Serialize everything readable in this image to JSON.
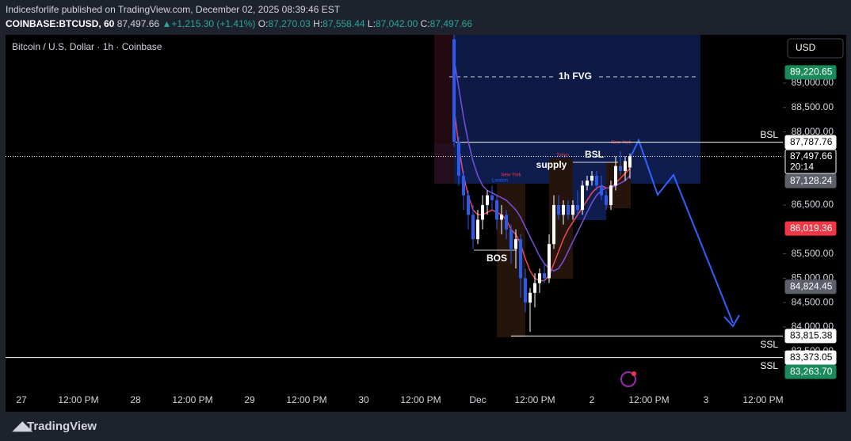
{
  "header": {
    "line1": "Indicesforlife published on TradingView.com, December 02, 2025 08:39:46 EST",
    "symbol": "COINBASE:BTCUSD, 60",
    "last": "87,497.66",
    "change": "+1,215.30 (+1.41%)",
    "o_label": "O:",
    "o": "87,270.03",
    "h_label": "H:",
    "h": "87,558.44",
    "l_label": "L:",
    "l": "87,042.00",
    "c_label": "C:",
    "c": "87,497.66"
  },
  "currency": "USD",
  "footer_logo": "TradingView",
  "chart_data": {
    "type": "candlestick",
    "title": "Bitcoin / U.S. Dollar · 1h · Coinbase",
    "up_color": "#ffffff",
    "down_color": "#2a5bf0",
    "ylim": [
      82750,
      89990
    ],
    "yticks": [
      {
        "value": 89000,
        "label": "89,000.00"
      },
      {
        "value": 88500,
        "label": "88,500.00"
      },
      {
        "value": 88000,
        "label": "88,000.00"
      },
      {
        "value": 86500,
        "label": "86,500.00"
      },
      {
        "value": 85500,
        "label": "85,500.00"
      },
      {
        "value": 85000,
        "label": "85,000.00"
      },
      {
        "value": 84500,
        "label": "84,500.00"
      },
      {
        "value": 84000,
        "label": "84,000.00"
      },
      {
        "value": 83500,
        "label": "83,500.00"
      }
    ],
    "xticks": [
      "27",
      "12:00 PM",
      "28",
      "12:00 PM",
      "29",
      "12:00 PM",
      "30",
      "12:00 PM",
      "Dec",
      "12:00 PM",
      "2",
      "12:00 PM",
      "3",
      "12:00 PM"
    ],
    "candles": [
      {
        "o": 89900,
        "h": 89990,
        "l": 87700,
        "c": 87800
      },
      {
        "o": 87800,
        "h": 87900,
        "l": 86900,
        "c": 87100
      },
      {
        "o": 87100,
        "h": 87200,
        "l": 86400,
        "c": 86700
      },
      {
        "o": 86700,
        "h": 86800,
        "l": 86000,
        "c": 86300
      },
      {
        "o": 86300,
        "h": 86500,
        "l": 85600,
        "c": 85800
      },
      {
        "o": 85800,
        "h": 86400,
        "l": 85700,
        "c": 86200
      },
      {
        "o": 86200,
        "h": 86700,
        "l": 86000,
        "c": 86500
      },
      {
        "o": 86500,
        "h": 86800,
        "l": 86300,
        "c": 86700
      },
      {
        "o": 86700,
        "h": 86900,
        "l": 86400,
        "c": 86600
      },
      {
        "o": 86600,
        "h": 86700,
        "l": 86000,
        "c": 86200
      },
      {
        "o": 86200,
        "h": 86500,
        "l": 85900,
        "c": 86300
      },
      {
        "o": 86300,
        "h": 86400,
        "l": 85800,
        "c": 86000
      },
      {
        "o": 86000,
        "h": 86100,
        "l": 85300,
        "c": 85600
      },
      {
        "o": 85600,
        "h": 86000,
        "l": 85200,
        "c": 85800
      },
      {
        "o": 85800,
        "h": 85900,
        "l": 84600,
        "c": 85000
      },
      {
        "o": 85000,
        "h": 85200,
        "l": 84300,
        "c": 84500
      },
      {
        "o": 84500,
        "h": 84800,
        "l": 83900,
        "c": 84700
      },
      {
        "o": 84700,
        "h": 85100,
        "l": 84400,
        "c": 84900
      },
      {
        "o": 84900,
        "h": 85200,
        "l": 84700,
        "c": 85100
      },
      {
        "o": 85100,
        "h": 85300,
        "l": 84900,
        "c": 85000
      },
      {
        "o": 85000,
        "h": 85900,
        "l": 84900,
        "c": 85700
      },
      {
        "o": 85700,
        "h": 86700,
        "l": 85600,
        "c": 86500
      },
      {
        "o": 86500,
        "h": 86700,
        "l": 86200,
        "c": 86300
      },
      {
        "o": 86300,
        "h": 86600,
        "l": 86100,
        "c": 86500
      },
      {
        "o": 86500,
        "h": 86600,
        "l": 86200,
        "c": 86300
      },
      {
        "o": 86300,
        "h": 86600,
        "l": 86200,
        "c": 86500
      },
      {
        "o": 86500,
        "h": 86800,
        "l": 86300,
        "c": 86400
      },
      {
        "o": 86400,
        "h": 87000,
        "l": 86300,
        "c": 86900
      },
      {
        "o": 86900,
        "h": 87100,
        "l": 86800,
        "c": 87000
      },
      {
        "o": 87000,
        "h": 87200,
        "l": 86900,
        "c": 87100
      },
      {
        "o": 87100,
        "h": 87200,
        "l": 86800,
        "c": 86900
      },
      {
        "o": 86900,
        "h": 87100,
        "l": 86600,
        "c": 86700
      },
      {
        "o": 86700,
        "h": 86800,
        "l": 86400,
        "c": 86500
      },
      {
        "o": 86500,
        "h": 87000,
        "l": 86400,
        "c": 86900
      },
      {
        "o": 86900,
        "h": 87500,
        "l": 86800,
        "c": 87300
      },
      {
        "o": 87300,
        "h": 87600,
        "l": 87100,
        "c": 87200
      },
      {
        "o": 87200,
        "h": 87500,
        "l": 87000,
        "c": 87400
      },
      {
        "o": 87270,
        "h": 87558,
        "l": 87042,
        "c": 87498
      }
    ],
    "series": [
      {
        "color": "#f0455a",
        "values": [
          88500,
          87700,
          87100,
          86700,
          86400,
          86300,
          86300,
          86350,
          86400,
          86350,
          86300,
          86200,
          86000,
          85900,
          85700,
          85400,
          85150,
          85000,
          84950,
          84950,
          85050,
          85300,
          85550,
          85800,
          86000,
          86150,
          86300,
          86450,
          86600,
          86750,
          86850,
          86900,
          86850,
          86850,
          86950,
          87050,
          87150,
          87250
        ]
      },
      {
        "color": "#7a4fe0",
        "values": [
          89500,
          88900,
          88300,
          87800,
          87400,
          87100,
          86900,
          86800,
          86750,
          86700,
          86650,
          86600,
          86500,
          86400,
          86250,
          86050,
          85850,
          85650,
          85450,
          85300,
          85200,
          85150,
          85200,
          85350,
          85550,
          85750,
          85950,
          86150,
          86350,
          86550,
          86700,
          86800,
          86850,
          86850,
          86900,
          86950,
          87000,
          87100
        ]
      }
    ],
    "price_labels": [
      {
        "value": 89220.65,
        "label": "89,220.65",
        "color": "#1b8a5a",
        "text_color": "#ffffff"
      },
      {
        "value": 87787.76,
        "label": "87,787.76",
        "color": "#ffffff",
        "text_color": "#000000"
      },
      {
        "value": 87497.66,
        "label": "87,497.66",
        "color": "#000000",
        "text_color": "#ffffff",
        "countdown": "20:14"
      },
      {
        "value": 87128.24,
        "label": "87,128.24",
        "color": "#5d606b",
        "text_color": "#ffffff"
      },
      {
        "value": 86019.36,
        "label": "86,019.36",
        "color": "#f23645",
        "text_color": "#ffffff"
      },
      {
        "value": 84824.45,
        "label": "84,824.45",
        "color": "#5d606b",
        "text_color": "#ffffff"
      },
      {
        "value": 83815.38,
        "label": "83,815.38",
        "color": "#ffffff",
        "text_color": "#000000"
      },
      {
        "value": 83373.05,
        "label": "83,373.05",
        "color": "#ffffff",
        "text_color": "#000000"
      },
      {
        "value": 83263.7,
        "label": "83,263.70",
        "color": "#1b8a5a",
        "text_color": "#ffffff"
      }
    ],
    "annotations": {
      "fvg": "1h FVG",
      "supply": "supply",
      "bsl_inner": "BSL",
      "bsl": "BSL",
      "ssl_1": "SSL",
      "ssl_2": "SSL",
      "bos": "BOS",
      "london": "London",
      "new_york_1": "New York",
      "tokyo": "Tokyo",
      "new_york_2": "New York"
    }
  }
}
